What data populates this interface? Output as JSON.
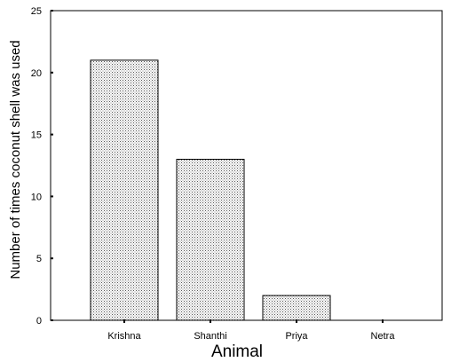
{
  "chart_data": {
    "type": "bar",
    "categories": [
      "Krishna",
      "Shanthi",
      "Priya",
      "Netra"
    ],
    "values": [
      21,
      13,
      2,
      0
    ],
    "title": "",
    "xlabel": "Animal",
    "ylabel": "Number of times coconut shell was used",
    "ylim": [
      0,
      25
    ],
    "yticks": [
      "0",
      "5",
      "10",
      "15",
      "20",
      "25"
    ],
    "grid": false,
    "bar_fill": "#dcdcdc",
    "bar_stroke": "#000000"
  }
}
